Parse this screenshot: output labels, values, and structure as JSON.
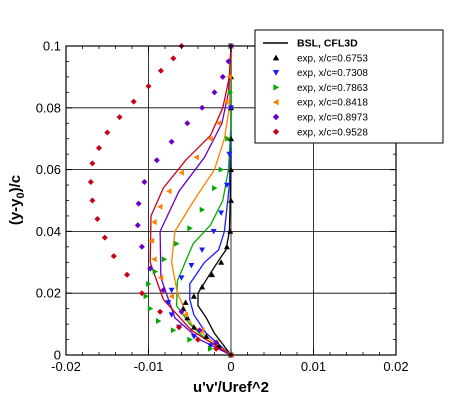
{
  "chart_data": {
    "type": "scatter",
    "xlabel": "u'v'/Uref^2",
    "ylabel": {
      "base": "(y-y",
      "subscript": "0",
      "tail": ")/c"
    },
    "xlim": [
      -0.02,
      0.02
    ],
    "ylim": [
      0,
      0.1
    ],
    "x_ticks": [
      -0.02,
      -0.01,
      0,
      0.01,
      0.02
    ],
    "x_tick_labels": [
      "-0.02",
      "-0.01",
      "0",
      "0.01",
      "0.02"
    ],
    "y_ticks": [
      0,
      0.02,
      0.04,
      0.06,
      0.08,
      0.1
    ],
    "y_tick_labels": [
      "0",
      "0.02",
      "0.04",
      "0.06",
      "0.08",
      "0.1"
    ],
    "grid": true,
    "legend_position": "top-right",
    "lines": [
      {
        "color": "#000000",
        "points": [
          [
            0,
            0.1
          ],
          [
            0,
            0.06
          ],
          [
            -0.0002,
            0.04
          ],
          [
            -0.0006,
            0.034
          ],
          [
            -0.0014,
            0.031
          ],
          [
            -0.0026,
            0.026
          ],
          [
            -0.004,
            0.02
          ],
          [
            -0.004,
            0.016
          ],
          [
            -0.003,
            0.012
          ],
          [
            -0.002,
            0.007
          ],
          [
            0,
            0
          ]
        ]
      },
      {
        "color": "#1a1aff",
        "points": [
          [
            0,
            0.1
          ],
          [
            0,
            0.07
          ],
          [
            -0.0002,
            0.055
          ],
          [
            -0.0008,
            0.04
          ],
          [
            -0.0015,
            0.034
          ],
          [
            -0.0032,
            0.03
          ],
          [
            -0.005,
            0.023
          ],
          [
            -0.005,
            0.018
          ],
          [
            -0.0045,
            0.013
          ],
          [
            -0.003,
            0.007
          ],
          [
            0,
            0
          ]
        ]
      },
      {
        "color": "#00aa00",
        "points": [
          [
            0,
            0.1
          ],
          [
            0,
            0.075
          ],
          [
            -0.0003,
            0.06
          ],
          [
            -0.001,
            0.05
          ],
          [
            -0.0025,
            0.042
          ],
          [
            -0.0046,
            0.036
          ],
          [
            -0.0065,
            0.024
          ],
          [
            -0.0066,
            0.016
          ],
          [
            -0.005,
            0.01
          ],
          [
            -0.003,
            0.005
          ],
          [
            0,
            0
          ]
        ]
      },
      {
        "color": "#ff8000",
        "points": [
          [
            0,
            0.1
          ],
          [
            -0.0002,
            0.08
          ],
          [
            -0.0008,
            0.07
          ],
          [
            -0.002,
            0.06
          ],
          [
            -0.0045,
            0.05
          ],
          [
            -0.0068,
            0.04
          ],
          [
            -0.0072,
            0.03
          ],
          [
            -0.0065,
            0.02
          ],
          [
            -0.0048,
            0.01
          ],
          [
            -0.0025,
            0.005
          ],
          [
            0,
            0
          ]
        ]
      },
      {
        "color": "#6a00c8",
        "points": [
          [
            0,
            0.1
          ],
          [
            -0.0003,
            0.085
          ],
          [
            -0.0011,
            0.075
          ],
          [
            -0.0032,
            0.064
          ],
          [
            -0.0063,
            0.053
          ],
          [
            -0.0086,
            0.04
          ],
          [
            -0.0085,
            0.025
          ],
          [
            -0.0068,
            0.012
          ],
          [
            -0.0038,
            0.005
          ],
          [
            0,
            0
          ]
        ]
      },
      {
        "color": "#c8001a",
        "points": [
          [
            0,
            0.1
          ],
          [
            -0.0002,
            0.09
          ],
          [
            -0.001,
            0.08
          ],
          [
            -0.0025,
            0.071
          ],
          [
            -0.0055,
            0.063
          ],
          [
            -0.0082,
            0.054
          ],
          [
            -0.0097,
            0.045
          ],
          [
            -0.0098,
            0.03
          ],
          [
            -0.0082,
            0.018
          ],
          [
            -0.0048,
            0.008
          ],
          [
            0,
            0
          ]
        ]
      }
    ],
    "series": [
      {
        "name": "BSL, CFL3D",
        "type": "line",
        "color": "#000000"
      },
      {
        "name": "exp, x/c=0.6753",
        "type": "marker",
        "marker": "triangle-up",
        "color": "#000000",
        "points": [
          [
            0,
            0.1
          ],
          [
            0,
            0.09
          ],
          [
            0,
            0.08
          ],
          [
            0,
            0.07
          ],
          [
            0,
            0.06
          ],
          [
            0,
            0.05
          ],
          [
            -0.0001,
            0.04
          ],
          [
            -0.0005,
            0.035
          ],
          [
            -0.0012,
            0.03
          ],
          [
            -0.0023,
            0.026
          ],
          [
            -0.0035,
            0.022
          ],
          [
            -0.0045,
            0.019
          ],
          [
            -0.0055,
            0.017
          ],
          [
            -0.0058,
            0.015
          ],
          [
            -0.0053,
            0.012
          ],
          [
            -0.0045,
            0.009
          ],
          [
            -0.003,
            0.006
          ],
          [
            -0.0015,
            0.003
          ],
          [
            0,
            0
          ]
        ]
      },
      {
        "name": "exp, x/c=0.7308",
        "type": "marker",
        "marker": "triangle-down",
        "color": "#1a1aff",
        "points": [
          [
            0,
            0.1
          ],
          [
            0,
            0.08
          ],
          [
            -0.0002,
            0.065
          ],
          [
            -0.0005,
            0.055
          ],
          [
            -0.0012,
            0.046
          ],
          [
            -0.0021,
            0.04
          ],
          [
            -0.0035,
            0.034
          ],
          [
            -0.0048,
            0.029
          ],
          [
            -0.006,
            0.025
          ],
          [
            -0.0072,
            0.021
          ],
          [
            -0.0076,
            0.017
          ],
          [
            -0.0072,
            0.013
          ],
          [
            -0.0063,
            0.009
          ],
          [
            -0.0045,
            0.006
          ],
          [
            -0.0025,
            0.003
          ],
          [
            0,
            0
          ]
        ]
      },
      {
        "name": "exp, x/c=0.7863",
        "type": "marker",
        "marker": "triangle-right",
        "color": "#00aa00",
        "points": [
          [
            0,
            0.1
          ],
          [
            -0.0001,
            0.085
          ],
          [
            -0.0004,
            0.07
          ],
          [
            -0.0012,
            0.06
          ],
          [
            -0.002,
            0.054
          ],
          [
            -0.0035,
            0.047
          ],
          [
            -0.005,
            0.041
          ],
          [
            -0.0066,
            0.036
          ],
          [
            -0.0081,
            0.031
          ],
          [
            -0.0092,
            0.027
          ],
          [
            -0.01,
            0.023
          ],
          [
            -0.0103,
            0.019
          ],
          [
            -0.0098,
            0.015
          ],
          [
            -0.0088,
            0.011
          ],
          [
            -0.007,
            0.008
          ],
          [
            -0.005,
            0.005
          ],
          [
            -0.0025,
            0.002
          ],
          [
            0,
            0
          ]
        ]
      },
      {
        "name": "exp, x/c=0.8418",
        "type": "marker",
        "marker": "triangle-left",
        "color": "#ff8000",
        "points": [
          [
            0,
            0.1
          ],
          [
            -0.0002,
            0.09
          ],
          [
            -0.0006,
            0.082
          ],
          [
            -0.0015,
            0.075
          ],
          [
            -0.0025,
            0.07
          ],
          [
            -0.0042,
            0.064
          ],
          [
            -0.006,
            0.059
          ],
          [
            -0.0075,
            0.053
          ],
          [
            -0.0086,
            0.048
          ],
          [
            -0.0093,
            0.043
          ],
          [
            -0.0096,
            0.037
          ],
          [
            -0.0093,
            0.031
          ],
          [
            -0.0085,
            0.025
          ],
          [
            -0.0072,
            0.019
          ],
          [
            -0.0055,
            0.013
          ],
          [
            -0.0035,
            0.008
          ],
          [
            -0.0018,
            0.004
          ],
          [
            0,
            0
          ]
        ]
      },
      {
        "name": "exp, x/c=0.8973",
        "type": "marker",
        "marker": "diamond",
        "color": "#6a00c8",
        "points": [
          [
            0,
            0.1
          ],
          [
            -0.0003,
            0.095
          ],
          [
            -0.001,
            0.09
          ],
          [
            -0.002,
            0.085
          ],
          [
            -0.0035,
            0.08
          ],
          [
            -0.0053,
            0.075
          ],
          [
            -0.0072,
            0.069
          ],
          [
            -0.009,
            0.063
          ],
          [
            -0.0105,
            0.056
          ],
          [
            -0.0112,
            0.049
          ],
          [
            -0.0113,
            0.042
          ],
          [
            -0.0108,
            0.035
          ],
          [
            -0.0098,
            0.028
          ],
          [
            -0.0082,
            0.021
          ],
          [
            -0.006,
            0.014
          ],
          [
            -0.0038,
            0.008
          ],
          [
            -0.0018,
            0.004
          ],
          [
            0,
            0
          ]
        ]
      },
      {
        "name": "exp, x/c=0.9528",
        "type": "marker",
        "marker": "diamond",
        "color": "#c8001a",
        "points": [
          [
            -0.006,
            0.1
          ],
          [
            -0.007,
            0.096
          ],
          [
            -0.0085,
            0.092
          ],
          [
            -0.01,
            0.087
          ],
          [
            -0.0118,
            0.082
          ],
          [
            -0.0135,
            0.077
          ],
          [
            -0.015,
            0.072
          ],
          [
            -0.016,
            0.067
          ],
          [
            -0.0168,
            0.062
          ],
          [
            -0.017,
            0.056
          ],
          [
            -0.0168,
            0.05
          ],
          [
            -0.0162,
            0.044
          ],
          [
            -0.0153,
            0.038
          ],
          [
            -0.0142,
            0.032
          ],
          [
            -0.0126,
            0.026
          ],
          [
            -0.0108,
            0.02
          ],
          [
            -0.0086,
            0.014
          ],
          [
            -0.0063,
            0.009
          ],
          [
            -0.004,
            0.005
          ],
          [
            -0.0018,
            0.002
          ],
          [
            0,
            0
          ]
        ]
      }
    ]
  }
}
